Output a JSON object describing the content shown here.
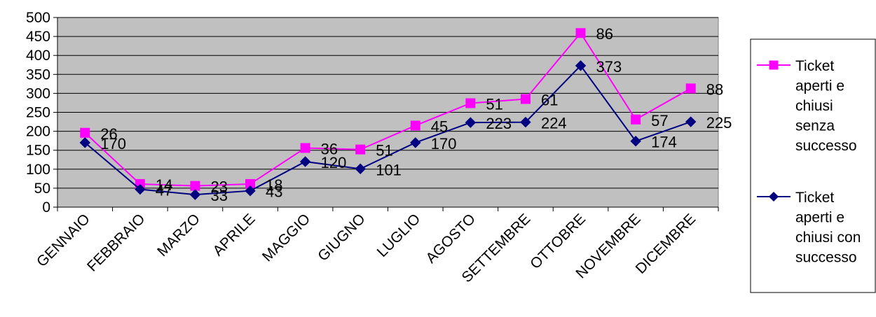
{
  "chart_data": {
    "type": "line",
    "title": "",
    "xlabel": "",
    "ylabel": "",
    "ylim": [
      0,
      500
    ],
    "yticks": [
      0,
      50,
      100,
      150,
      200,
      250,
      300,
      350,
      400,
      450,
      500
    ],
    "grid": true,
    "plot_background": "#c0c0c0",
    "legend_position": "right",
    "categories": [
      "GENNAIO",
      "FEBBRAIO",
      "MARZO",
      "APRILE",
      "MAGGIO",
      "GIUGNO",
      "LUGLIO",
      "AGOSTO",
      "SETTEMBRE",
      "OTTOBRE",
      "NOVEMBRE",
      "DICEMBRE"
    ],
    "series": [
      {
        "name": "Ticket aperti e chiusi senza successo",
        "legend_lines": [
          "Ticket",
          "aperti e",
          "chiusi",
          "senza",
          "successo"
        ],
        "color": "#ff00ff",
        "marker": "square",
        "values": [
          196,
          61,
          56,
          61,
          156,
          152,
          215,
          274,
          285,
          459,
          231,
          313
        ],
        "labels": [
          "26",
          "14",
          "23",
          "18",
          "36",
          "51",
          "45",
          "51",
          "61",
          "86",
          "57",
          "88"
        ]
      },
      {
        "name": "Ticket aperti e chiusi con successo",
        "legend_lines": [
          "Ticket",
          "aperti e",
          "chiusi con",
          "successo"
        ],
        "color": "#000080",
        "marker": "diamond",
        "values": [
          170,
          47,
          33,
          43,
          120,
          101,
          170,
          223,
          224,
          373,
          174,
          225
        ],
        "labels": [
          "170",
          "47",
          "33",
          "43",
          "120",
          "101",
          "170",
          "223",
          "224",
          "373",
          "174",
          "225"
        ]
      }
    ]
  }
}
